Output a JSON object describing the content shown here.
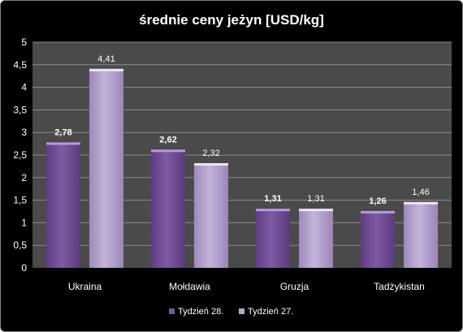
{
  "chart_data": {
    "type": "bar",
    "title": "średnie ceny jeżyn [USD/kg]",
    "categories": [
      "Ukraina",
      "Mołdawia",
      "Gruzja",
      "Tadżykistan"
    ],
    "series": [
      {
        "name": "Tydzień 28.",
        "values": [
          2.78,
          2.62,
          1.31,
          1.26
        ],
        "labels": [
          "2,78",
          "2,62",
          "1,31",
          "1,26"
        ]
      },
      {
        "name": "Tydzień 27.",
        "values": [
          4.41,
          2.32,
          1.31,
          1.46
        ],
        "labels": [
          "4,41",
          "2,32",
          "1,31",
          "1,46"
        ]
      }
    ],
    "y_ticks": [
      "0",
      "0,5",
      "1",
      "1,5",
      "2",
      "2,5",
      "3",
      "3,5",
      "4",
      "4,5",
      "5"
    ],
    "ylim": [
      0,
      5
    ],
    "grid": true,
    "legend_position": "bottom",
    "colors": {
      "background": "#000000",
      "plot_area": "#4a4a4a",
      "gridline": "#8c8c8c",
      "series_1": "#7b559e",
      "series_2": "#b7a6cf"
    }
  }
}
